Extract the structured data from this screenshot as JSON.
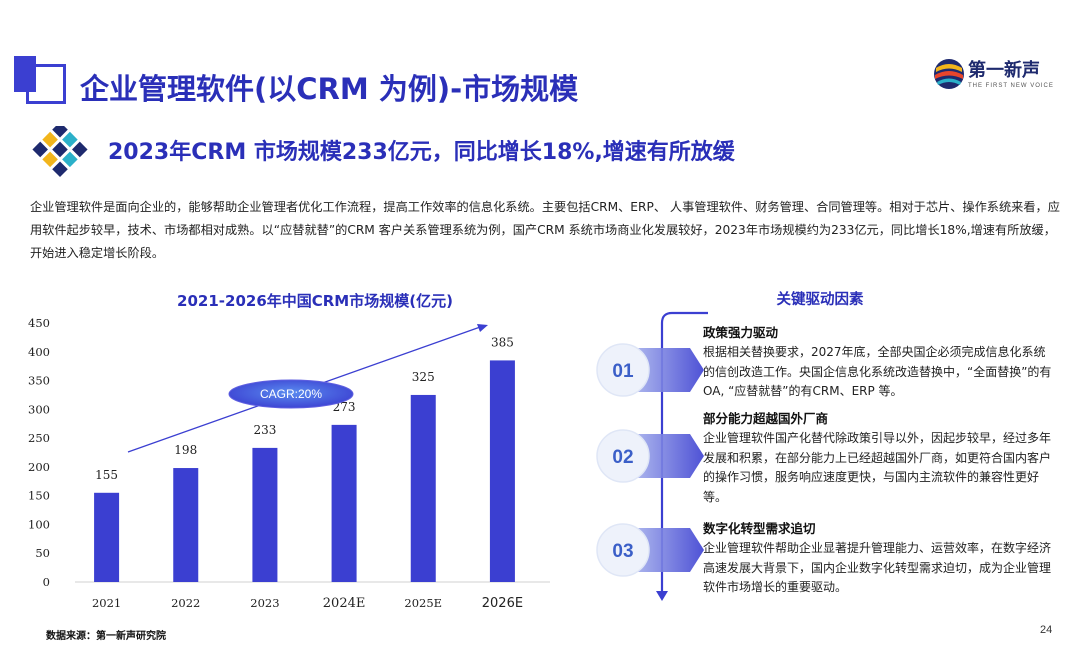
{
  "header": {
    "title": "企业管理软件(以CRM  为例)-市场规模",
    "logo_text": "第一新声",
    "logo_sub": "THE FIRST NEW VOICE"
  },
  "subtitle": "2023年CRM  市场规模233亿元，同比增长18%,增速有所放缓",
  "intro": "企业管理软件是面向企业的，能够帮助企业管理者优化工作流程，提高工作效率的信息化系统。主要包括CRM、ERP、  人事管理软件、财务管理、合同管理等。相对于芯片、操作系统来看，应用软件起步较早，技术、市场都相对成熟。以“应替就替”的CRM  客户关系管理系统为例，国产CRM  系统市场商业化发展较好，2023年市场规模约为233亿元，同比增长18%,增速有所放缓，开始进入稳定增长阶段。",
  "chart_data": {
    "type": "bar",
    "title": "2021-2026年中国CRM市场规模(亿元)",
    "categories": [
      "2021",
      "2022",
      "2023",
      "2024E",
      "2025E",
      "2026E"
    ],
    "values": [
      155,
      198,
      233,
      273,
      325,
      385
    ],
    "ylim": [
      0,
      450
    ],
    "yticks": [
      "0",
      "50",
      "100",
      "150",
      "200",
      "250",
      "300",
      "350",
      "400",
      "450"
    ],
    "annotation": "CAGR:20%",
    "bar_color": "#3b3fd1"
  },
  "source": "数据来源：第一新声研究院",
  "page_number": "24",
  "drivers": {
    "title": "关键驱动因素",
    "items": [
      {
        "num": "01",
        "title": "政策强力驱动",
        "text": "根据相关替换要求，2027年底，全部央国企必须完成信息化系统的信创改造工作。央国企信息化系统改造替换中，“全面替换”的有OA,  “应替就替”的有CRM、ERP  等。"
      },
      {
        "num": "02",
        "title": "部分能力超越国外厂商",
        "text": "企业管理软件国产化替代除政策引导以外，因起步较早，经过多年发展和积累，在部分能力上已经超越国外厂商，如更符合国内客户的操作习惯，服务响应速度更快，与国内主流软件的兼容性更好等。"
      },
      {
        "num": "03",
        "title": "数字化转型需求追切",
        "text": "企业管理软件帮助企业显著提升管理能力、运营效率，在数字经济高速发展大背景下，国内企业数字化转型需求迫切，成为企业管理软件市场增长的重要驱动。"
      }
    ]
  },
  "colors": {
    "accent": "#2a2fb8",
    "bar": "#3b3fd1"
  }
}
